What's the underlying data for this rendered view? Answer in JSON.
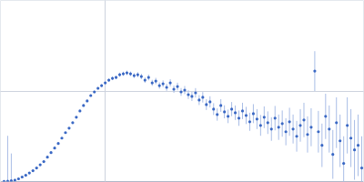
{
  "chart_data": {
    "type": "scatter",
    "marker": "circle",
    "color": "#3a68c4",
    "grid": true,
    "tick_labels": false,
    "xlim": [
      0,
      402
    ],
    "ylim": [
      0,
      200
    ],
    "xticks": [
      115
    ],
    "yticks": [
      100
    ],
    "x": [
      4,
      8,
      12,
      16,
      20,
      24,
      28,
      32,
      36,
      40,
      44,
      48,
      52,
      56,
      60,
      64,
      68,
      72,
      76,
      80,
      84,
      88,
      92,
      96,
      100,
      104,
      108,
      112,
      116,
      120,
      124,
      128,
      132,
      136,
      140,
      144,
      148,
      152,
      156,
      160,
      164,
      168,
      172,
      176,
      180,
      184,
      188,
      192,
      196,
      200,
      204,
      208,
      212,
      216,
      220,
      224,
      228,
      232,
      236,
      240,
      244,
      248,
      252,
      256,
      260,
      264,
      268,
      272,
      276,
      280,
      284,
      288,
      292,
      296,
      300,
      304,
      308,
      312,
      316,
      320,
      324,
      328,
      332,
      336,
      340,
      344,
      348,
      352,
      356,
      360,
      364,
      368,
      372,
      376,
      380,
      384,
      388,
      392,
      396,
      400
    ],
    "values": [
      0.2,
      0.5,
      1,
      1.5,
      3,
      5,
      7,
      9.5,
      12,
      15,
      18.5,
      22,
      27,
      32,
      37,
      42,
      48,
      54,
      59,
      65,
      71,
      78,
      84,
      89,
      95,
      99,
      103,
      106,
      109,
      112,
      114,
      115,
      118,
      119,
      120,
      119,
      117,
      118,
      116,
      112,
      115,
      109,
      111,
      106,
      108,
      104,
      109,
      102,
      105,
      99,
      101,
      96,
      94,
      98,
      90,
      93,
      85,
      88,
      80,
      74,
      84,
      77,
      72,
      80,
      76,
      70,
      78,
      73,
      66,
      75,
      69,
      62,
      71,
      65,
      58,
      70,
      60,
      64,
      55,
      66,
      58,
      50,
      62,
      68,
      52,
      60,
      122,
      55,
      40,
      72,
      58,
      30,
      65,
      45,
      20,
      62,
      48,
      35,
      40,
      15
    ],
    "errors": [
      0.5,
      50,
      30,
      2,
      1,
      0.6,
      0.6,
      0.7,
      0.7,
      0.7,
      0.8,
      0.8,
      0.8,
      0.9,
      0.9,
      0.9,
      1,
      1,
      1,
      1,
      1.1,
      1.1,
      1.2,
      1.2,
      1.3,
      1.5,
      1.5,
      1.6,
      1.7,
      1.8,
      2,
      2,
      2.2,
      2.3,
      2.5,
      2.5,
      2.7,
      2.8,
      3,
      3,
      3.2,
      3.3,
      3.5,
      3.5,
      3.7,
      3.8,
      4,
      4,
      4.2,
      4.3,
      4.5,
      4.8,
      5,
      5.2,
      5.5,
      5.8,
      6,
      6.2,
      6.5,
      6.8,
      7,
      7.2,
      7.5,
      7.8,
      8,
      8.5,
      9,
      9.5,
      10,
      10.5,
      11,
      11.5,
      12,
      12.5,
      13,
      13.5,
      14,
      14.5,
      15,
      15.5,
      16,
      17,
      18,
      19,
      20,
      21,
      22,
      23,
      24,
      25,
      26,
      27,
      28,
      29,
      30,
      31,
      32,
      33,
      34,
      35
    ]
  }
}
